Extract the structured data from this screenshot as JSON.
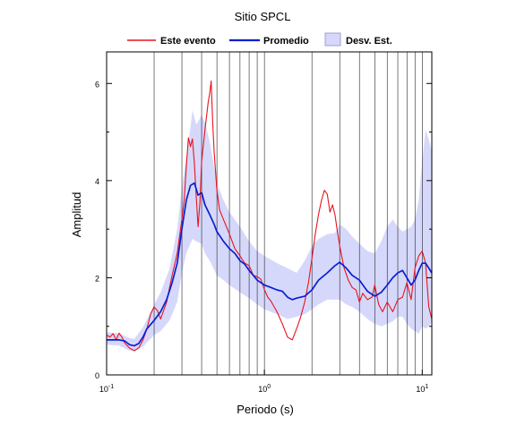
{
  "chart_data": {
    "type": "line",
    "title": "Sitio SPCL",
    "xlabel": "Periodo (s)",
    "ylabel": "Amplitud",
    "x_scale": "log",
    "xlim": [
      0.1,
      11.5
    ],
    "ylim": [
      0,
      6.65
    ],
    "x_ticks": [
      {
        "value": 0.1,
        "base": "10",
        "exp": "-1"
      },
      {
        "value": 1,
        "base": "10",
        "exp": "0"
      },
      {
        "value": 10,
        "base": "10",
        "exp": "1"
      }
    ],
    "y_ticks": [
      0,
      2,
      4,
      6
    ],
    "grid": "vertical-log-lines",
    "legend_position": "top",
    "colors": {
      "evento": "#e8141c",
      "promedio": "#0a1ed2",
      "band_fill": "#d6d8fb"
    },
    "legend": [
      {
        "label": "Este evento",
        "kind": "line",
        "color": "#e8141c"
      },
      {
        "label": "Promedio",
        "kind": "line",
        "color": "#0a1ed2"
      },
      {
        "label": "Desv. Est.",
        "kind": "box",
        "color": "#d6d8fb"
      }
    ],
    "series": [
      {
        "name": "Este evento",
        "points": [
          [
            0.1,
            0.82
          ],
          [
            0.105,
            0.78
          ],
          [
            0.11,
            0.85
          ],
          [
            0.115,
            0.72
          ],
          [
            0.12,
            0.86
          ],
          [
            0.125,
            0.78
          ],
          [
            0.13,
            0.66
          ],
          [
            0.14,
            0.55
          ],
          [
            0.15,
            0.5
          ],
          [
            0.16,
            0.56
          ],
          [
            0.17,
            0.72
          ],
          [
            0.18,
            0.95
          ],
          [
            0.19,
            1.25
          ],
          [
            0.2,
            1.4
          ],
          [
            0.21,
            1.32
          ],
          [
            0.22,
            1.15
          ],
          [
            0.24,
            1.5
          ],
          [
            0.26,
            2.05
          ],
          [
            0.28,
            2.5
          ],
          [
            0.3,
            3.2
          ],
          [
            0.31,
            3.6
          ],
          [
            0.32,
            4.3
          ],
          [
            0.33,
            4.88
          ],
          [
            0.34,
            4.7
          ],
          [
            0.35,
            4.86
          ],
          [
            0.36,
            4.35
          ],
          [
            0.37,
            3.65
          ],
          [
            0.38,
            3.05
          ],
          [
            0.39,
            3.55
          ],
          [
            0.4,
            4.4
          ],
          [
            0.42,
            5.05
          ],
          [
            0.44,
            5.6
          ],
          [
            0.45,
            5.8
          ],
          [
            0.46,
            6.05
          ],
          [
            0.47,
            5.2
          ],
          [
            0.48,
            4.6
          ],
          [
            0.5,
            3.8
          ],
          [
            0.52,
            3.4
          ],
          [
            0.55,
            3.2
          ],
          [
            0.6,
            2.9
          ],
          [
            0.65,
            2.6
          ],
          [
            0.7,
            2.45
          ],
          [
            0.75,
            2.3
          ],
          [
            0.8,
            2.25
          ],
          [
            0.85,
            2.05
          ],
          [
            0.9,
            2.02
          ],
          [
            0.95,
            1.97
          ],
          [
            1.0,
            1.75
          ],
          [
            1.05,
            1.6
          ],
          [
            1.1,
            1.52
          ],
          [
            1.2,
            1.3
          ],
          [
            1.3,
            1.05
          ],
          [
            1.4,
            0.78
          ],
          [
            1.5,
            0.72
          ],
          [
            1.6,
            0.95
          ],
          [
            1.7,
            1.2
          ],
          [
            1.8,
            1.5
          ],
          [
            1.9,
            1.9
          ],
          [
            2.0,
            2.4
          ],
          [
            2.1,
            2.9
          ],
          [
            2.2,
            3.3
          ],
          [
            2.3,
            3.6
          ],
          [
            2.4,
            3.8
          ],
          [
            2.5,
            3.72
          ],
          [
            2.6,
            3.35
          ],
          [
            2.7,
            3.5
          ],
          [
            2.8,
            3.3
          ],
          [
            2.9,
            2.95
          ],
          [
            3.0,
            2.65
          ],
          [
            3.2,
            2.2
          ],
          [
            3.4,
            1.95
          ],
          [
            3.6,
            1.8
          ],
          [
            3.8,
            1.75
          ],
          [
            4.0,
            1.5
          ],
          [
            4.2,
            1.68
          ],
          [
            4.5,
            1.55
          ],
          [
            4.8,
            1.6
          ],
          [
            5.0,
            1.85
          ],
          [
            5.3,
            1.45
          ],
          [
            5.6,
            1.3
          ],
          [
            6.0,
            1.5
          ],
          [
            6.5,
            1.3
          ],
          [
            7.0,
            1.55
          ],
          [
            7.5,
            1.6
          ],
          [
            8.0,
            1.9
          ],
          [
            8.5,
            1.55
          ],
          [
            9.0,
            2.2
          ],
          [
            9.5,
            2.45
          ],
          [
            10.0,
            2.55
          ],
          [
            10.5,
            2.3
          ],
          [
            11.0,
            1.4
          ],
          [
            11.5,
            1.15
          ]
        ]
      },
      {
        "name": "Promedio",
        "points": [
          [
            0.1,
            0.72
          ],
          [
            0.11,
            0.72
          ],
          [
            0.12,
            0.72
          ],
          [
            0.13,
            0.7
          ],
          [
            0.14,
            0.62
          ],
          [
            0.15,
            0.6
          ],
          [
            0.16,
            0.65
          ],
          [
            0.17,
            0.78
          ],
          [
            0.18,
            0.95
          ],
          [
            0.2,
            1.12
          ],
          [
            0.22,
            1.3
          ],
          [
            0.24,
            1.55
          ],
          [
            0.26,
            1.9
          ],
          [
            0.28,
            2.3
          ],
          [
            0.3,
            3.0
          ],
          [
            0.32,
            3.6
          ],
          [
            0.34,
            3.9
          ],
          [
            0.36,
            3.95
          ],
          [
            0.38,
            3.7
          ],
          [
            0.4,
            3.75
          ],
          [
            0.42,
            3.5
          ],
          [
            0.45,
            3.3
          ],
          [
            0.48,
            3.1
          ],
          [
            0.5,
            2.95
          ],
          [
            0.55,
            2.75
          ],
          [
            0.6,
            2.6
          ],
          [
            0.65,
            2.5
          ],
          [
            0.7,
            2.35
          ],
          [
            0.75,
            2.28
          ],
          [
            0.8,
            2.15
          ],
          [
            0.85,
            2.05
          ],
          [
            0.9,
            1.95
          ],
          [
            0.95,
            1.9
          ],
          [
            1.0,
            1.85
          ],
          [
            1.1,
            1.8
          ],
          [
            1.2,
            1.75
          ],
          [
            1.3,
            1.72
          ],
          [
            1.4,
            1.6
          ],
          [
            1.5,
            1.55
          ],
          [
            1.6,
            1.58
          ],
          [
            1.8,
            1.62
          ],
          [
            2.0,
            1.75
          ],
          [
            2.2,
            1.95
          ],
          [
            2.5,
            2.1
          ],
          [
            2.8,
            2.25
          ],
          [
            3.0,
            2.32
          ],
          [
            3.3,
            2.2
          ],
          [
            3.6,
            2.05
          ],
          [
            4.0,
            1.95
          ],
          [
            4.5,
            1.72
          ],
          [
            5.0,
            1.62
          ],
          [
            5.5,
            1.7
          ],
          [
            6.0,
            1.85
          ],
          [
            6.5,
            2.0
          ],
          [
            7.0,
            2.1
          ],
          [
            7.5,
            2.15
          ],
          [
            8.0,
            2.0
          ],
          [
            8.5,
            1.85
          ],
          [
            9.0,
            1.95
          ],
          [
            9.5,
            2.15
          ],
          [
            10.0,
            2.3
          ],
          [
            10.5,
            2.3
          ],
          [
            11.0,
            2.2
          ],
          [
            11.5,
            2.1
          ]
        ]
      }
    ],
    "band": {
      "name": "Desv. Est.",
      "points": [
        [
          0.1,
          0.62,
          0.88
        ],
        [
          0.12,
          0.6,
          0.85
        ],
        [
          0.14,
          0.5,
          0.76
        ],
        [
          0.15,
          0.48,
          0.74
        ],
        [
          0.17,
          0.58,
          0.98
        ],
        [
          0.2,
          0.82,
          1.44
        ],
        [
          0.22,
          0.9,
          1.7
        ],
        [
          0.25,
          1.12,
          2.18
        ],
        [
          0.28,
          1.5,
          3.0
        ],
        [
          0.3,
          2.1,
          3.85
        ],
        [
          0.32,
          2.5,
          4.5
        ],
        [
          0.34,
          2.7,
          5.1
        ],
        [
          0.35,
          2.8,
          5.45
        ],
        [
          0.37,
          2.75,
          5.15
        ],
        [
          0.4,
          2.7,
          5.35
        ],
        [
          0.42,
          2.5,
          5.2
        ],
        [
          0.45,
          2.35,
          4.8
        ],
        [
          0.5,
          2.05,
          3.95
        ],
        [
          0.55,
          1.95,
          3.6
        ],
        [
          0.6,
          1.85,
          3.35
        ],
        [
          0.7,
          1.7,
          3.05
        ],
        [
          0.8,
          1.58,
          2.75
        ],
        [
          0.9,
          1.45,
          2.55
        ],
        [
          1.0,
          1.35,
          2.45
        ],
        [
          1.2,
          1.25,
          2.3
        ],
        [
          1.4,
          1.15,
          2.2
        ],
        [
          1.6,
          1.2,
          2.1
        ],
        [
          1.8,
          1.25,
          2.35
        ],
        [
          2.0,
          1.35,
          2.65
        ],
        [
          2.2,
          1.45,
          2.8
        ],
        [
          2.5,
          1.55,
          2.9
        ],
        [
          2.8,
          1.55,
          2.92
        ],
        [
          3.0,
          1.55,
          3.1
        ],
        [
          3.3,
          1.45,
          3.0
        ],
        [
          3.6,
          1.4,
          2.85
        ],
        [
          4.0,
          1.3,
          2.7
        ],
        [
          4.5,
          1.15,
          2.55
        ],
        [
          5.0,
          1.05,
          2.5
        ],
        [
          5.5,
          1.0,
          2.75
        ],
        [
          6.0,
          1.05,
          3.05
        ],
        [
          6.5,
          1.1,
          3.2
        ],
        [
          7.0,
          1.2,
          3.05
        ],
        [
          7.5,
          1.2,
          2.95
        ],
        [
          8.0,
          1.05,
          3.0
        ],
        [
          8.5,
          0.95,
          3.05
        ],
        [
          9.0,
          0.9,
          3.2
        ],
        [
          9.5,
          0.85,
          3.6
        ],
        [
          10.0,
          1.0,
          4.4
        ],
        [
          10.5,
          0.95,
          5.05
        ],
        [
          11.0,
          1.0,
          4.85
        ],
        [
          11.5,
          1.1,
          4.6
        ]
      ]
    }
  }
}
